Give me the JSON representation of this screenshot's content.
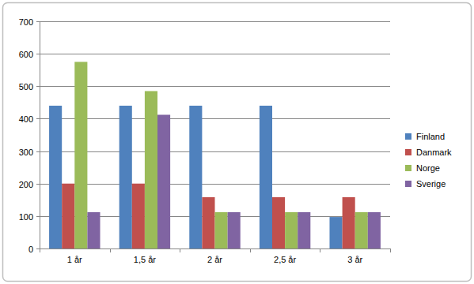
{
  "chart_data": {
    "type": "bar",
    "categories": [
      "1 år",
      "1,5 år",
      "2 år",
      "2,5 år",
      "3 år"
    ],
    "series": [
      {
        "name": "Finland",
        "color": "#4f81bd",
        "values": [
          440,
          440,
          440,
          440,
          97
        ]
      },
      {
        "name": "Danmark",
        "color": "#c0504d",
        "values": [
          200,
          200,
          158,
          158,
          158
        ]
      },
      {
        "name": "Norge",
        "color": "#9bbb59",
        "values": [
          575,
          485,
          112,
          112,
          112
        ]
      },
      {
        "name": "Sverige",
        "color": "#8064a2",
        "values": [
          112,
          412,
          112,
          112,
          112
        ]
      }
    ],
    "ylim": [
      0,
      700
    ],
    "yticks": [
      0,
      100,
      200,
      300,
      400,
      500,
      600,
      700
    ],
    "grid": true,
    "legend": "right"
  }
}
